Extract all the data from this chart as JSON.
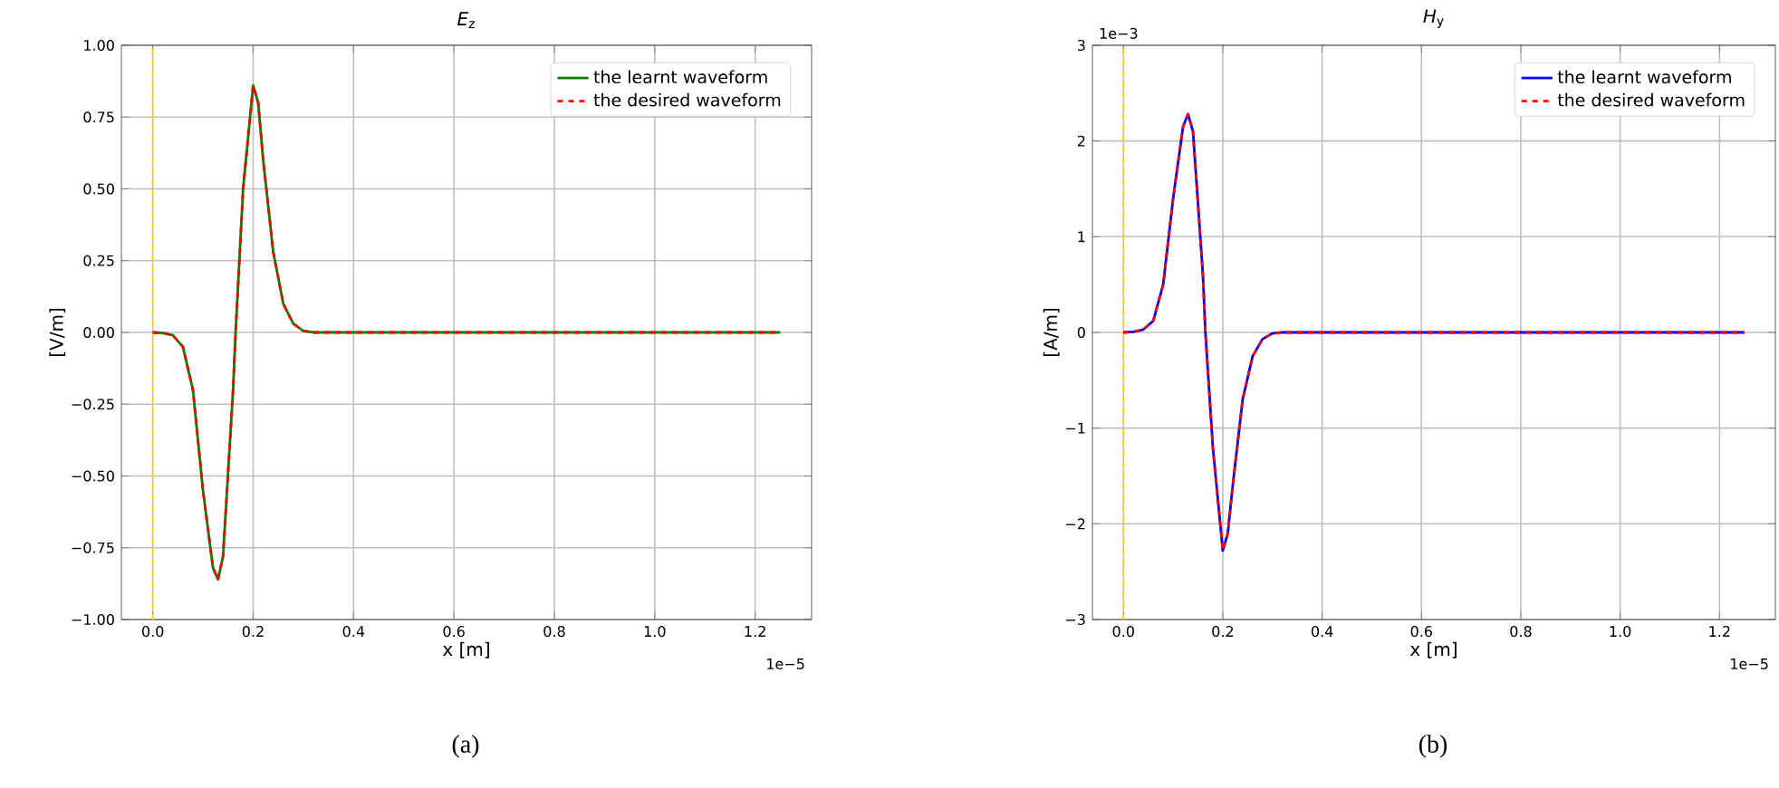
{
  "chart_data": [
    {
      "type": "line",
      "title": "*E*$_{z}$",
      "xlabel": "x [m]",
      "ylabel": "[V/m]",
      "x": [
        0,
        0.02,
        0.04,
        0.06,
        0.08,
        0.1,
        0.12,
        0.13,
        0.14,
        0.16,
        0.165,
        0.18,
        0.2,
        0.21,
        0.22,
        0.24,
        0.26,
        0.28,
        0.3,
        0.32,
        0.4,
        0.6,
        0.8,
        1.0,
        1.25
      ],
      "series": [
        {
          "name": "the learnt waveform",
          "color": "#008000",
          "line_style": "solid",
          "values": [
            0,
            -0.002,
            -0.01,
            -0.05,
            -0.2,
            -0.55,
            -0.82,
            -0.86,
            -0.78,
            -0.2,
            0,
            0.5,
            0.86,
            0.8,
            0.6,
            0.28,
            0.1,
            0.03,
            0.005,
            0,
            0,
            0,
            0,
            0,
            0
          ]
        },
        {
          "name": "the desired waveform",
          "color": "#ff0000",
          "line_style": "dashed",
          "values": [
            0,
            -0.002,
            -0.01,
            -0.05,
            -0.2,
            -0.55,
            -0.82,
            -0.86,
            -0.78,
            -0.2,
            0,
            0.5,
            0.86,
            0.8,
            0.6,
            0.28,
            0.1,
            0.03,
            0.005,
            0,
            0,
            0,
            0,
            0,
            0
          ]
        }
      ],
      "xlim": [
        -0.0625,
        1.3125
      ],
      "ylim": [
        -1,
        1
      ],
      "xticks": [
        {
          "value": 0,
          "label": "0.0"
        },
        {
          "value": 0.2,
          "label": "0.2"
        },
        {
          "value": 0.4,
          "label": "0.4"
        },
        {
          "value": 0.6,
          "label": "0.6"
        },
        {
          "value": 0.8,
          "label": "0.8"
        },
        {
          "value": 1.0,
          "label": "1.0"
        },
        {
          "value": 1.2,
          "label": "1.2"
        }
      ],
      "yticks": [
        {
          "value": -1,
          "label": "−1.00"
        },
        {
          "value": -0.75,
          "label": "−0.75"
        },
        {
          "value": -0.5,
          "label": "−0.50"
        },
        {
          "value": -0.25,
          "label": "−0.25"
        },
        {
          "value": 0,
          "label": "0.00"
        },
        {
          "value": 0.25,
          "label": "0.25"
        },
        {
          "value": 0.5,
          "label": "0.50"
        },
        {
          "value": 0.75,
          "label": "0.75"
        },
        {
          "value": 1,
          "label": "1.00"
        }
      ],
      "ref_lines": [
        {
          "axis": "x",
          "value": 0,
          "color": "#ffd700",
          "line_style": "dashed"
        }
      ],
      "grid": true,
      "legend": "top right",
      "annotations": [
        "1e−5",
        "(a)"
      ]
    },
    {
      "type": "line",
      "title": "*H*$_{y}$",
      "xlabel": "x [m]",
      "ylabel": "[A/m]",
      "x": [
        0,
        0.02,
        0.04,
        0.06,
        0.08,
        0.1,
        0.12,
        0.13,
        0.14,
        0.16,
        0.165,
        0.18,
        0.2,
        0.21,
        0.22,
        0.24,
        0.26,
        0.28,
        0.3,
        0.32,
        0.4,
        0.6,
        0.8,
        1.0,
        1.25
      ],
      "series": [
        {
          "name": "the learnt waveform",
          "color": "#0000ff",
          "line_style": "solid",
          "values": [
            0,
            0.005,
            0.03,
            0.12,
            0.5,
            1.4,
            2.15,
            2.28,
            2.1,
            0.6,
            0,
            -1.2,
            -2.28,
            -2.1,
            -1.6,
            -0.7,
            -0.25,
            -0.07,
            -0.01,
            0,
            0,
            0,
            0,
            0,
            0
          ]
        },
        {
          "name": "the desired waveform",
          "color": "#ff0000",
          "line_style": "dashed",
          "values": [
            0,
            0.005,
            0.03,
            0.12,
            0.5,
            1.4,
            2.15,
            2.28,
            2.1,
            0.6,
            0,
            -1.2,
            -2.28,
            -2.1,
            -1.6,
            -0.7,
            -0.25,
            -0.07,
            -0.01,
            0,
            0,
            0,
            0,
            0,
            0
          ]
        }
      ],
      "xlim": [
        -0.0625,
        1.3125
      ],
      "ylim": [
        -3,
        3
      ],
      "xticks": [
        {
          "value": 0,
          "label": "0.0"
        },
        {
          "value": 0.2,
          "label": "0.2"
        },
        {
          "value": 0.4,
          "label": "0.4"
        },
        {
          "value": 0.6,
          "label": "0.6"
        },
        {
          "value": 0.8,
          "label": "0.8"
        },
        {
          "value": 1.0,
          "label": "1.0"
        },
        {
          "value": 1.2,
          "label": "1.2"
        }
      ],
      "yticks": [
        {
          "value": -3,
          "label": "−3"
        },
        {
          "value": -2,
          "label": "−2"
        },
        {
          "value": -1,
          "label": "−1"
        },
        {
          "value": 0,
          "label": "0"
        },
        {
          "value": 1,
          "label": "1"
        },
        {
          "value": 2,
          "label": "2"
        },
        {
          "value": 3,
          "label": "3"
        }
      ],
      "ref_lines": [
        {
          "axis": "x",
          "value": 0,
          "color": "#ffd700",
          "line_style": "dashed"
        }
      ],
      "grid": true,
      "legend": "top right",
      "annotations": [
        "1e−3",
        "1e−5",
        "(b)"
      ]
    }
  ]
}
